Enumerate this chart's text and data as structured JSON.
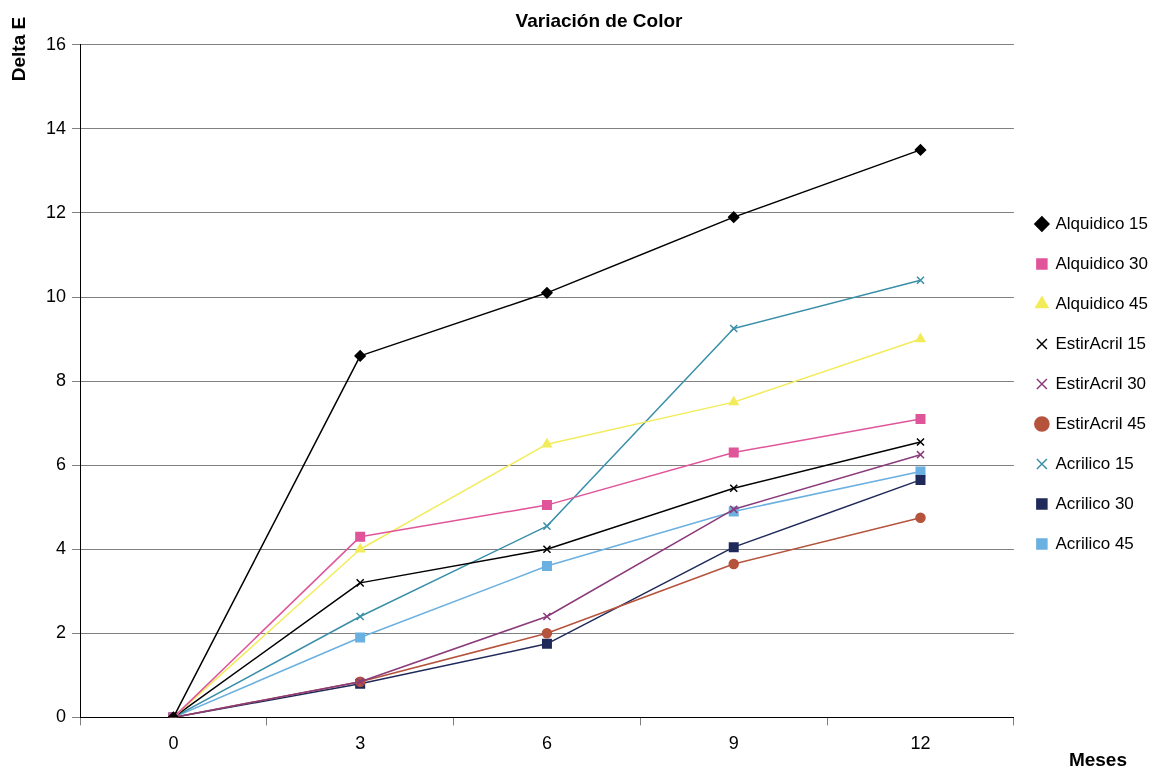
{
  "chart_data": {
    "type": "line",
    "title": "Variación de Color",
    "xlabel": "Meses",
    "ylabel": "Delta E",
    "categories": [
      "0",
      "3",
      "6",
      "9",
      "12"
    ],
    "ylim": [
      0,
      16
    ],
    "yticks": [
      0,
      2,
      4,
      6,
      8,
      10,
      12,
      14,
      16
    ],
    "grid": "y",
    "legend": "right",
    "series": [
      {
        "name": "Alquidico 15",
        "color": "#000000",
        "marker": "diamond",
        "values": [
          0,
          8.6,
          10.1,
          11.9,
          13.5
        ]
      },
      {
        "name": "Alquidico 30",
        "color": "#e0559a",
        "marker": "square",
        "values": [
          0,
          4.3,
          5.05,
          6.3,
          7.1
        ]
      },
      {
        "name": "Alquidico 45",
        "color": "#f2ec5a",
        "marker": "triangle",
        "values": [
          0,
          4.0,
          6.5,
          7.5,
          9.0
        ]
      },
      {
        "name": "EstirAcril 15",
        "color": "#000000",
        "marker": "cross",
        "values": [
          0,
          3.2,
          4.0,
          5.45,
          6.55
        ]
      },
      {
        "name": "EstirAcril 30",
        "color": "#8b3a7a",
        "marker": "cross",
        "values": [
          0,
          0.85,
          2.4,
          4.95,
          6.25
        ]
      },
      {
        "name": "EstirAcril 45",
        "color": "#b5533c",
        "marker": "circle",
        "values": [
          0,
          0.85,
          2.0,
          3.65,
          4.75
        ]
      },
      {
        "name": "Acrilico 15",
        "color": "#3a8fa8",
        "marker": "cross",
        "values": [
          0,
          2.4,
          4.55,
          9.25,
          10.4
        ]
      },
      {
        "name": "Acrilico 30",
        "color": "#1f2a5a",
        "marker": "square",
        "values": [
          0,
          0.8,
          1.75,
          4.05,
          5.65
        ]
      },
      {
        "name": "Acrilico 45",
        "color": "#6ab0e0",
        "marker": "square",
        "values": [
          0,
          1.9,
          3.6,
          4.9,
          5.85
        ]
      }
    ]
  }
}
